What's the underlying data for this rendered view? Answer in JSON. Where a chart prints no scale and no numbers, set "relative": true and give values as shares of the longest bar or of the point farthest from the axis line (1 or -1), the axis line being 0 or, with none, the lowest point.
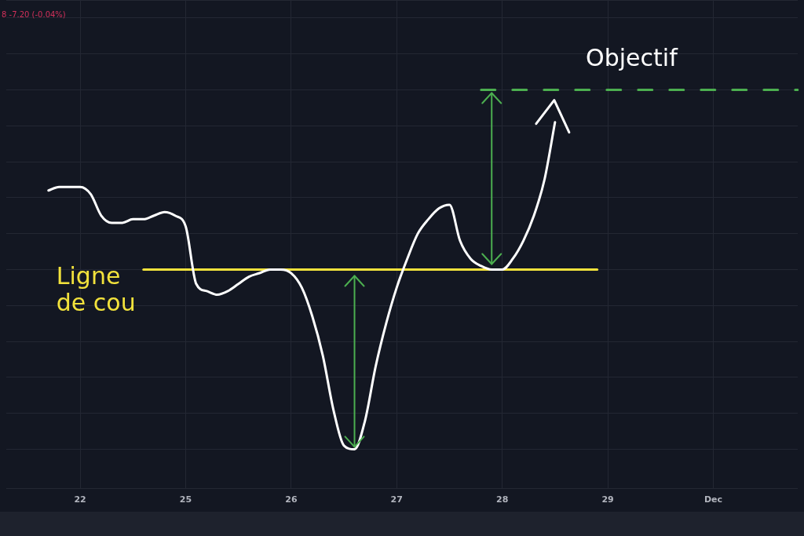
{
  "chart_data": {
    "type": "line",
    "relative": true,
    "categories": [
      null,
      null,
      null,
      null,
      null,
      null,
      null,
      "22",
      null,
      null,
      null,
      null,
      null,
      null,
      null,
      null,
      null,
      "25",
      null,
      null,
      null,
      null,
      null,
      null,
      null,
      null,
      null,
      "26",
      null,
      null,
      null,
      null,
      null,
      null,
      null,
      null,
      null,
      "27",
      null,
      null,
      null,
      null,
      null,
      null,
      null,
      null,
      null,
      "28",
      null,
      null,
      null,
      null,
      null,
      null,
      null,
      null,
      null,
      "29",
      null,
      null,
      null,
      null,
      null,
      null,
      null,
      null,
      null,
      "Dec",
      null,
      null,
      null,
      null,
      null,
      null,
      null,
      null
    ],
    "grid": true,
    "legend": false,
    "marker": "none",
    "annotations": [
      "8 -7.20 (-0.04%)"
    ],
    "series": [
      {
        "color": "#ffffff",
        "values": [
          null,
          null,
          null,
          null,
          0.72,
          0.73,
          0.73,
          0.73,
          0.71,
          0.65,
          0.63,
          0.63,
          0.64,
          0.64,
          0.65,
          0.66,
          0.65,
          0.62,
          0.46,
          0.44,
          0.43,
          0.44,
          0.46,
          0.48,
          0.49,
          0.5,
          0.5,
          0.49,
          0.45,
          0.37,
          0.26,
          0.11,
          0.01,
          0,
          0.08,
          0.23,
          0.35,
          0.45,
          0.53,
          0.6,
          0.64,
          0.67,
          0.68,
          0.58,
          0.53,
          0.51,
          0.5,
          0.5,
          0.53,
          0.58,
          0.65,
          0.75,
          0.91,
          null,
          null,
          null,
          null,
          null,
          null,
          null,
          null,
          null,
          null,
          null,
          null,
          null,
          null,
          null,
          null,
          null,
          null,
          null,
          null,
          null,
          null,
          null
        ]
      },
      {
        "name": "Ligne de cou",
        "color": "#f2e23c",
        "values": [
          null,
          null,
          null,
          null,
          null,
          null,
          null,
          null,
          null,
          null,
          null,
          null,
          null,
          0.5,
          0.5,
          0.5,
          0.5,
          0.5,
          0.5,
          0.5,
          0.5,
          0.5,
          0.5,
          0.5,
          0.5,
          0.5,
          0.5,
          0.5,
          0.5,
          0.5,
          0.5,
          0.5,
          0.5,
          0.5,
          0.5,
          0.5,
          0.5,
          0.5,
          0.5,
          0.5,
          0.5,
          0.5,
          0.5,
          0.5,
          0.5,
          0.5,
          0.5,
          0.5,
          0.5,
          0.5,
          0.5,
          0.5,
          0.5,
          0.5,
          0.5,
          0.5,
          0.5,
          null,
          null,
          null,
          null,
          null,
          null,
          null,
          null,
          null,
          null,
          null,
          null,
          null,
          null,
          null,
          null,
          null,
          null,
          null
        ]
      },
      {
        "name": "Objectif",
        "color": "#4caf50",
        "line_style": "dashed",
        "values": [
          null,
          null,
          null,
          null,
          null,
          null,
          null,
          null,
          null,
          null,
          null,
          null,
          null,
          null,
          null,
          null,
          null,
          null,
          null,
          null,
          null,
          null,
          null,
          null,
          null,
          null,
          null,
          null,
          null,
          null,
          null,
          null,
          null,
          null,
          null,
          null,
          null,
          null,
          null,
          null,
          null,
          null,
          null,
          null,
          null,
          1,
          1,
          1,
          1,
          1,
          1,
          1,
          1,
          1,
          1,
          1,
          1,
          1,
          1,
          1,
          1,
          1,
          1,
          1,
          1,
          1,
          1,
          1,
          1,
          1,
          1,
          1,
          1,
          1,
          1,
          1
        ]
      }
    ]
  }
}
